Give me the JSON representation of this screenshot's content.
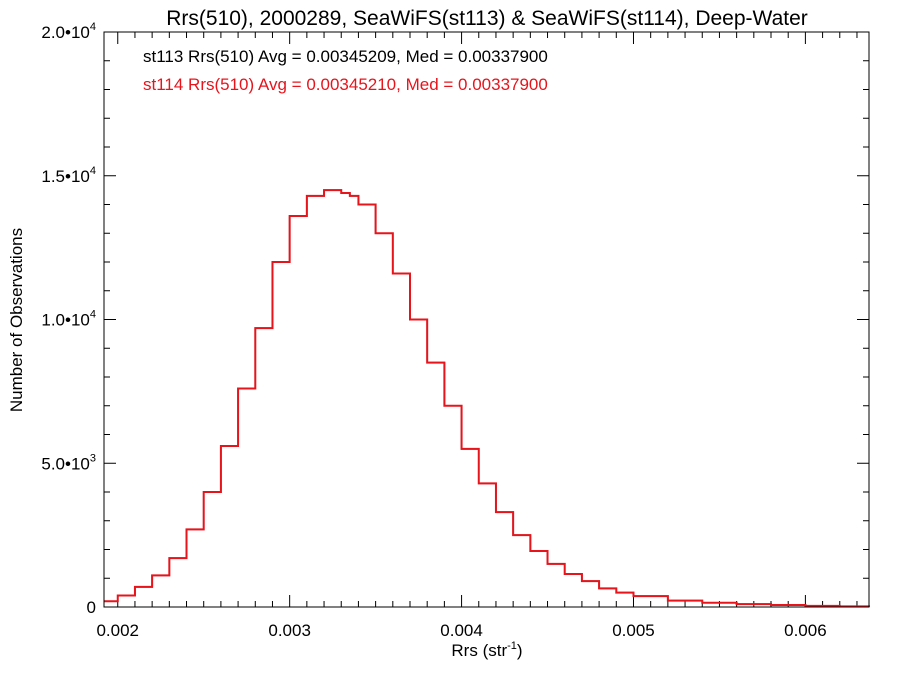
{
  "chart_data": {
    "type": "line",
    "title": "Rrs(510), 2000289, SeaWiFS(st113) & SeaWiFS(st114), Deep-Water",
    "xlabel": "Rrs (str",
    "xlabel_sup": "-1",
    "xlabel_end": ")",
    "ylabel": "Number of Observations",
    "xlim": [
      0.00192,
      0.00637
    ],
    "ylim": [
      0,
      20000
    ],
    "x_ticks": [
      {
        "v": 0.002,
        "label": "0.002"
      },
      {
        "v": 0.003,
        "label": "0.003"
      },
      {
        "v": 0.004,
        "label": "0.004"
      },
      {
        "v": 0.005,
        "label": "0.005"
      },
      {
        "v": 0.006,
        "label": "0.006"
      }
    ],
    "y_ticks": [
      {
        "v": 0,
        "label": "0",
        "sup": ""
      },
      {
        "v": 5000,
        "label": "5.0•10",
        "sup": "3"
      },
      {
        "v": 10000,
        "label": "1.0•10",
        "sup": "4"
      },
      {
        "v": 15000,
        "label": "1.5•10",
        "sup": "4"
      },
      {
        "v": 20000,
        "label": "2.0•10",
        "sup": "4"
      }
    ],
    "annotations": [
      {
        "text": "st113 Rrs(510) Avg = 0.00345209, Med = 0.00337900",
        "color": "#000000"
      },
      {
        "text": "st114 Rrs(510) Avg = 0.00345210, Med = 0.00337900",
        "color": "#e8141c"
      }
    ],
    "series": [
      {
        "name": "st113",
        "color": "#000000",
        "x": [
          0.00192,
          0.002,
          0.0021,
          0.0022,
          0.0023,
          0.0024,
          0.0025,
          0.0026,
          0.0027,
          0.0028,
          0.0029,
          0.003,
          0.0031,
          0.0032,
          0.00325,
          0.0033,
          0.00335,
          0.0034,
          0.0035,
          0.0036,
          0.0037,
          0.0038,
          0.0039,
          0.004,
          0.0041,
          0.0042,
          0.0043,
          0.0044,
          0.0045,
          0.0046,
          0.0047,
          0.0048,
          0.0049,
          0.005,
          0.0052,
          0.0054,
          0.0056,
          0.0058,
          0.006,
          0.0062,
          0.00637
        ],
        "values": [
          200,
          400,
          700,
          1100,
          1700,
          2700,
          4000,
          5600,
          7600,
          9700,
          12000,
          13600,
          14300,
          14500,
          14500,
          14400,
          14300,
          14000,
          13000,
          11600,
          10000,
          8500,
          7000,
          5500,
          4300,
          3300,
          2500,
          1950,
          1500,
          1150,
          900,
          650,
          500,
          380,
          220,
          150,
          100,
          70,
          40,
          20,
          10
        ]
      },
      {
        "name": "st114",
        "color": "#e8141c",
        "x": [
          0.00192,
          0.002,
          0.0021,
          0.0022,
          0.0023,
          0.0024,
          0.0025,
          0.0026,
          0.0027,
          0.0028,
          0.0029,
          0.003,
          0.0031,
          0.0032,
          0.00325,
          0.0033,
          0.00335,
          0.0034,
          0.0035,
          0.0036,
          0.0037,
          0.0038,
          0.0039,
          0.004,
          0.0041,
          0.0042,
          0.0043,
          0.0044,
          0.0045,
          0.0046,
          0.0047,
          0.0048,
          0.0049,
          0.005,
          0.0052,
          0.0054,
          0.0056,
          0.0058,
          0.006,
          0.0062,
          0.00637
        ],
        "values": [
          200,
          400,
          700,
          1100,
          1700,
          2700,
          4000,
          5600,
          7600,
          9700,
          12000,
          13600,
          14300,
          14500,
          14500,
          14400,
          14300,
          14000,
          13000,
          11600,
          10000,
          8500,
          7000,
          5500,
          4300,
          3300,
          2500,
          1950,
          1500,
          1150,
          900,
          650,
          500,
          380,
          220,
          150,
          100,
          70,
          40,
          20,
          10
        ]
      }
    ],
    "grid": false,
    "legend": "none"
  }
}
